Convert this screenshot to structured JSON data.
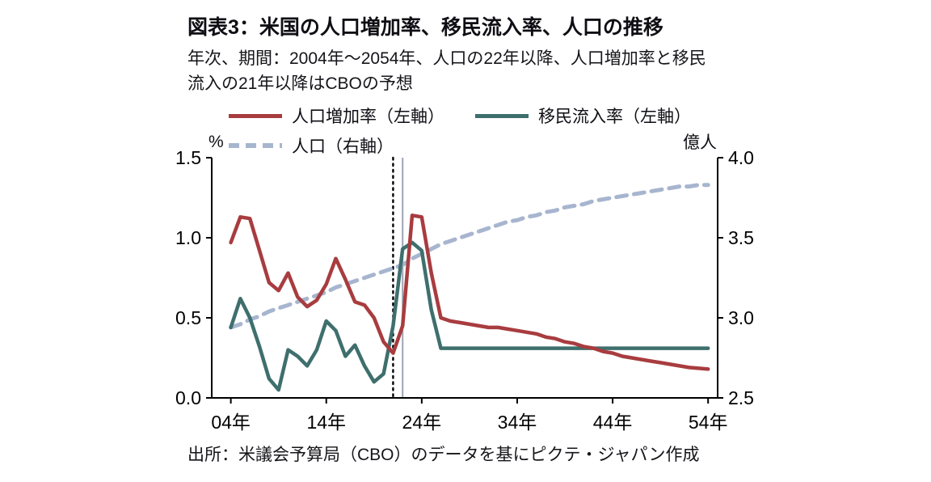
{
  "figure": {
    "title": "図表3：米国の人口増加率、移民流入率、人口の推移",
    "subtitle_line1": "年次、期間：2004年～2054年、人口の22年以降、人口増加率と移民",
    "subtitle_line2": "流入の21年以降はCBOの予想",
    "left_axis_unit": "%",
    "right_axis_unit": "億人",
    "source": "出所：米議会予算局（CBO）のデータを基にピクテ・ジャパン作成"
  },
  "legend": [
    {
      "label": "人口増加率（左軸）",
      "style": "solid",
      "color": "#a83c3f"
    },
    {
      "label": "移民流入率（左軸）",
      "style": "solid",
      "color": "#3e6f6d"
    },
    {
      "label": "人口（右軸）",
      "style": "dashed",
      "color": "#a7b5cf"
    }
  ],
  "chart_data": {
    "type": "line",
    "title": "図表3：米国の人口増加率、移民流入率、人口の推移",
    "left_axis": {
      "label": "%",
      "min": 0.0,
      "max": 1.5,
      "ticks": [
        "0.0",
        "0.5",
        "1.0",
        "1.5"
      ]
    },
    "right_axis": {
      "label": "億人",
      "min": 2.5,
      "max": 4.0,
      "ticks": [
        "2.5",
        "3.0",
        "3.5",
        "4.0"
      ]
    },
    "x_ticks": [
      {
        "year": 2004,
        "label": "04年"
      },
      {
        "year": 2014,
        "label": "14年"
      },
      {
        "year": 2024,
        "label": "24年"
      },
      {
        "year": 2034,
        "label": "34年"
      },
      {
        "year": 2044,
        "label": "44年"
      },
      {
        "year": 2054,
        "label": "54年"
      }
    ],
    "annotations": {
      "dotted_vline_year": 2021,
      "solid_vline_year": 2022
    },
    "years": [
      2004,
      2005,
      2006,
      2007,
      2008,
      2009,
      2010,
      2011,
      2012,
      2013,
      2014,
      2015,
      2016,
      2017,
      2018,
      2019,
      2020,
      2021,
      2022,
      2023,
      2024,
      2025,
      2026,
      2027,
      2028,
      2029,
      2030,
      2031,
      2032,
      2033,
      2034,
      2035,
      2036,
      2037,
      2038,
      2039,
      2040,
      2041,
      2042,
      2043,
      2044,
      2045,
      2046,
      2047,
      2048,
      2049,
      2050,
      2051,
      2052,
      2053,
      2054
    ],
    "series": [
      {
        "id": "growth",
        "name": "人口増加率（左軸）",
        "axis": "left",
        "style": "solid",
        "color": "#a83c3f",
        "values": [
          0.97,
          1.13,
          1.12,
          0.92,
          0.72,
          0.67,
          0.78,
          0.63,
          0.57,
          0.61,
          0.71,
          0.87,
          0.74,
          0.6,
          0.58,
          0.5,
          0.35,
          0.28,
          0.45,
          1.14,
          1.13,
          0.78,
          0.5,
          0.48,
          0.47,
          0.46,
          0.45,
          0.44,
          0.44,
          0.43,
          0.42,
          0.41,
          0.4,
          0.38,
          0.37,
          0.35,
          0.34,
          0.32,
          0.31,
          0.29,
          0.28,
          0.26,
          0.25,
          0.24,
          0.23,
          0.22,
          0.21,
          0.2,
          0.19,
          0.185,
          0.18
        ]
      },
      {
        "id": "immigration",
        "name": "移民流入率（左軸）",
        "axis": "left",
        "style": "solid",
        "color": "#3e6f6d",
        "values": [
          0.44,
          0.62,
          0.5,
          0.32,
          0.12,
          0.05,
          0.3,
          0.26,
          0.2,
          0.3,
          0.48,
          0.42,
          0.26,
          0.33,
          0.2,
          0.1,
          0.15,
          0.45,
          0.93,
          0.97,
          0.92,
          0.55,
          0.31,
          0.31,
          0.31,
          0.31,
          0.31,
          0.31,
          0.31,
          0.31,
          0.31,
          0.31,
          0.31,
          0.31,
          0.31,
          0.31,
          0.31,
          0.31,
          0.31,
          0.31,
          0.31,
          0.31,
          0.31,
          0.31,
          0.31,
          0.31,
          0.31,
          0.31,
          0.31,
          0.31,
          0.31
        ]
      },
      {
        "id": "population",
        "name": "人口（右軸）",
        "axis": "right",
        "style": "dashed",
        "color": "#a7b5cf",
        "values": [
          2.94,
          2.96,
          2.99,
          3.01,
          3.04,
          3.06,
          3.08,
          3.1,
          3.12,
          3.14,
          3.16,
          3.19,
          3.21,
          3.23,
          3.25,
          3.27,
          3.29,
          3.31,
          3.33,
          3.37,
          3.4,
          3.43,
          3.46,
          3.48,
          3.5,
          3.52,
          3.54,
          3.56,
          3.58,
          3.6,
          3.61,
          3.63,
          3.64,
          3.66,
          3.67,
          3.69,
          3.7,
          3.71,
          3.73,
          3.74,
          3.75,
          3.76,
          3.77,
          3.78,
          3.79,
          3.8,
          3.81,
          3.82,
          3.82,
          3.83,
          3.83
        ]
      }
    ]
  }
}
